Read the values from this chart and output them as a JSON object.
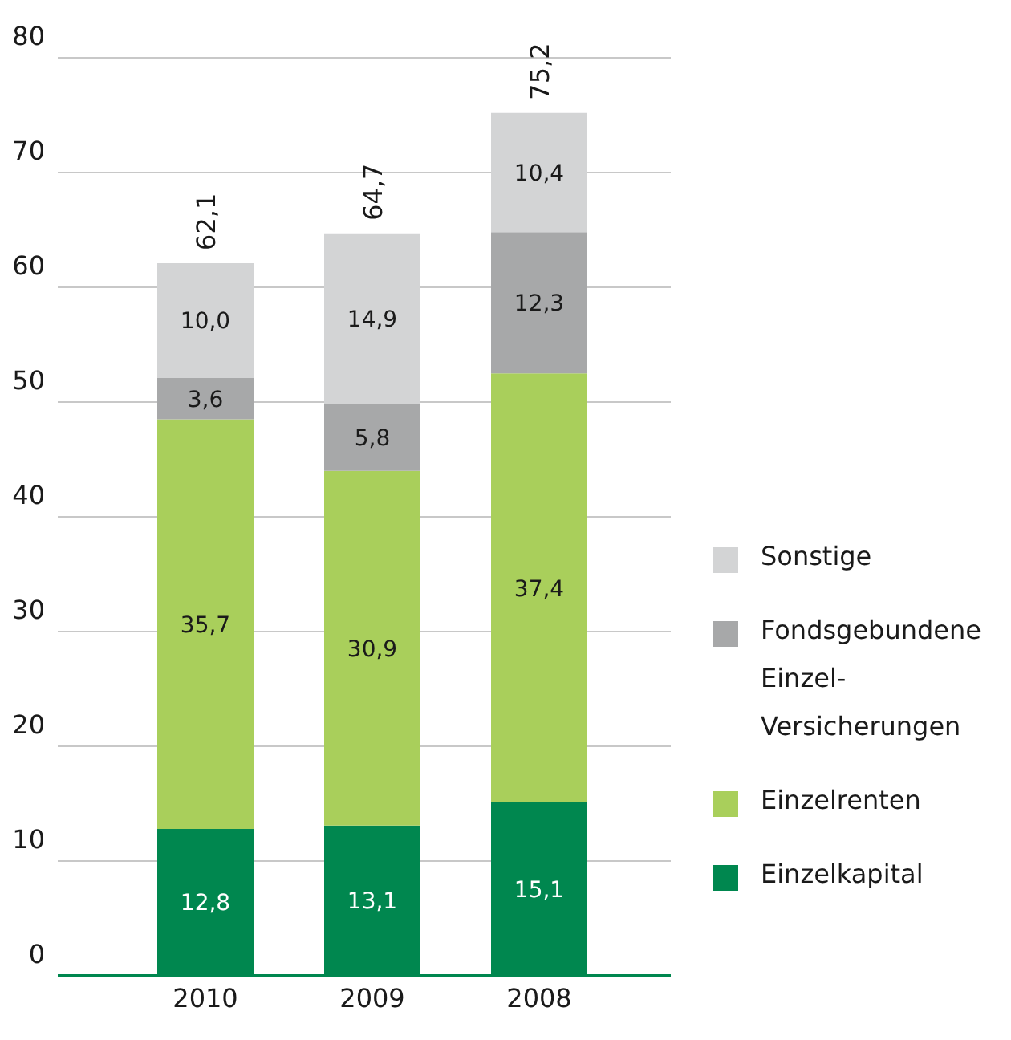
{
  "chart_data": {
    "type": "bar",
    "stacked": true,
    "categories": [
      "2010",
      "2009",
      "2008"
    ],
    "series": [
      {
        "name": "Einzelkapital",
        "color": "#00874f",
        "values": [
          12.8,
          13.1,
          15.1
        ],
        "value_labels": [
          "12,8",
          "13,1",
          "15,1"
        ]
      },
      {
        "name": "Einzelrenten",
        "color": "#a9cf5b",
        "values": [
          35.7,
          30.9,
          37.4
        ],
        "value_labels": [
          "35,7",
          "30,9",
          "37,4"
        ]
      },
      {
        "name": "Fondsgebundene Einzel-Versicherungen",
        "color": "#a7a8a9",
        "values": [
          3.6,
          5.8,
          12.3
        ],
        "value_labels": [
          "3,6",
          "5,8",
          "12,3"
        ]
      },
      {
        "name": "Sonstige",
        "color": "#d3d4d5",
        "values": [
          10.0,
          14.9,
          10.4
        ],
        "value_labels": [
          "10,0",
          "14,9",
          "10,4"
        ]
      }
    ],
    "totals": [
      "62,1",
      "64,7",
      "75,2"
    ],
    "ylim": [
      0,
      80
    ],
    "yticks": [
      0,
      10,
      20,
      30,
      40,
      50,
      60,
      70,
      80
    ],
    "grid": "y",
    "legend": "right"
  }
}
